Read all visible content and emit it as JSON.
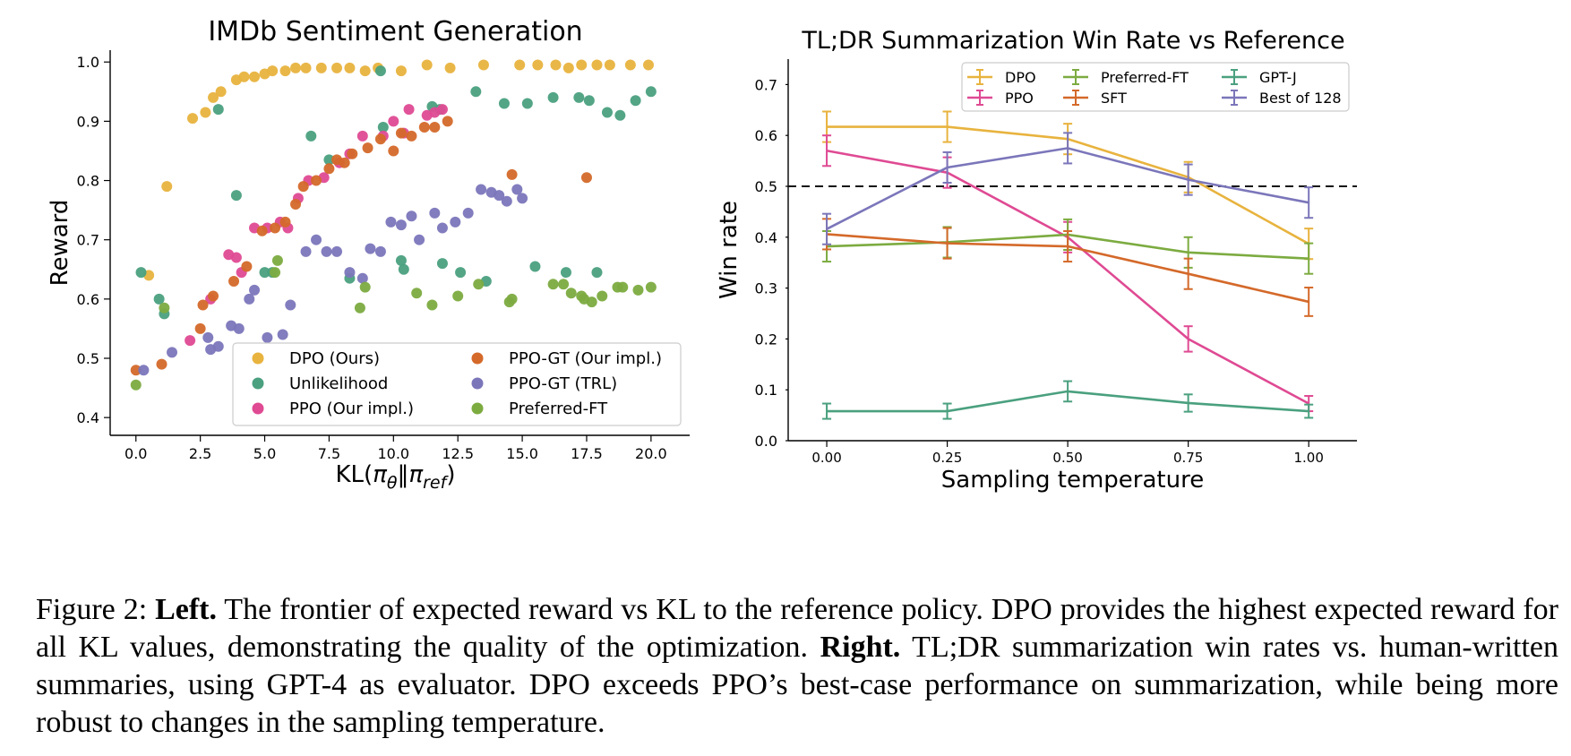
{
  "chart_data": [
    {
      "type": "scatter",
      "title": "IMDb Sentiment Generation",
      "xlabel": "KL(πθ‖πref)",
      "ylabel": "Reward",
      "xlim": [
        -1,
        21.5
      ],
      "ylim": [
        0.37,
        1.02
      ],
      "xticks": [
        0.0,
        2.5,
        5.0,
        7.5,
        10.0,
        12.5,
        15.0,
        17.5,
        20.0
      ],
      "xtick_labels": [
        "0.0",
        "2.5",
        "5.0",
        "7.5",
        "10.0",
        "12.5",
        "15.0",
        "17.5",
        "20.0"
      ],
      "yticks": [
        0.4,
        0.5,
        0.6,
        0.7,
        0.8,
        0.9,
        1.0
      ],
      "ytick_labels": [
        "0.4",
        "0.5",
        "0.6",
        "0.7",
        "0.8",
        "0.9",
        "1.0"
      ],
      "legend_placement": "lower-right",
      "series": [
        {
          "name": "DPO (Ours)",
          "color": "#e8b33e",
          "points": [
            [
              0.5,
              0.64
            ],
            [
              1.2,
              0.79
            ],
            [
              2.2,
              0.905
            ],
            [
              2.7,
              0.915
            ],
            [
              3.0,
              0.94
            ],
            [
              3.3,
              0.95
            ],
            [
              3.9,
              0.97
            ],
            [
              4.2,
              0.975
            ],
            [
              4.6,
              0.975
            ],
            [
              5.0,
              0.98
            ],
            [
              5.3,
              0.985
            ],
            [
              5.8,
              0.985
            ],
            [
              6.2,
              0.99
            ],
            [
              6.6,
              0.99
            ],
            [
              7.2,
              0.99
            ],
            [
              7.8,
              0.99
            ],
            [
              8.3,
              0.99
            ],
            [
              8.9,
              0.985
            ],
            [
              9.4,
              0.99
            ],
            [
              10.3,
              0.985
            ],
            [
              11.3,
              0.995
            ],
            [
              12.2,
              0.99
            ],
            [
              13.5,
              0.995
            ],
            [
              14.9,
              0.995
            ],
            [
              15.6,
              0.995
            ],
            [
              16.3,
              0.995
            ],
            [
              16.8,
              0.99
            ],
            [
              17.3,
              0.995
            ],
            [
              17.9,
              0.995
            ],
            [
              18.4,
              0.995
            ],
            [
              19.2,
              0.995
            ],
            [
              19.9,
              0.995
            ]
          ]
        },
        {
          "name": "Unlikelihood",
          "color": "#4aa07f",
          "points": [
            [
              0.2,
              0.645
            ],
            [
              0.9,
              0.6
            ],
            [
              1.1,
              0.575
            ],
            [
              3.2,
              0.92
            ],
            [
              3.9,
              0.775
            ],
            [
              5.0,
              0.645
            ],
            [
              5.3,
              0.645
            ],
            [
              6.8,
              0.875
            ],
            [
              7.5,
              0.835
            ],
            [
              8.3,
              0.635
            ],
            [
              9.5,
              0.985
            ],
            [
              9.6,
              0.89
            ],
            [
              10.4,
              0.65
            ],
            [
              10.3,
              0.665
            ],
            [
              11.5,
              0.925
            ],
            [
              11.8,
              0.92
            ],
            [
              11.9,
              0.66
            ],
            [
              12.6,
              0.645
            ],
            [
              13.2,
              0.95
            ],
            [
              13.6,
              0.63
            ],
            [
              14.3,
              0.93
            ],
            [
              15.2,
              0.93
            ],
            [
              15.5,
              0.655
            ],
            [
              16.2,
              0.94
            ],
            [
              16.7,
              0.645
            ],
            [
              17.2,
              0.94
            ],
            [
              17.6,
              0.935
            ],
            [
              17.9,
              0.645
            ],
            [
              18.3,
              0.915
            ],
            [
              18.8,
              0.91
            ],
            [
              19.4,
              0.935
            ],
            [
              20.0,
              0.95
            ]
          ]
        },
        {
          "name": "PPO (Our impl.)",
          "color": "#df4a93",
          "points": [
            [
              2.1,
              0.53
            ],
            [
              2.9,
              0.6
            ],
            [
              3.6,
              0.675
            ],
            [
              3.9,
              0.67
            ],
            [
              4.1,
              0.645
            ],
            [
              4.6,
              0.72
            ],
            [
              5.1,
              0.72
            ],
            [
              5.6,
              0.73
            ],
            [
              5.9,
              0.72
            ],
            [
              6.3,
              0.77
            ],
            [
              6.7,
              0.8
            ],
            [
              7.3,
              0.805
            ],
            [
              7.9,
              0.83
            ],
            [
              8.3,
              0.845
            ],
            [
              8.8,
              0.875
            ],
            [
              9.6,
              0.875
            ],
            [
              10.0,
              0.9
            ],
            [
              10.4,
              0.88
            ],
            [
              10.6,
              0.92
            ],
            [
              11.3,
              0.91
            ],
            [
              11.6,
              0.915
            ],
            [
              11.9,
              0.92
            ]
          ]
        },
        {
          "name": "PPO-GT (Our impl.)",
          "color": "#d4692a",
          "points": [
            [
              0.0,
              0.48
            ],
            [
              1.0,
              0.49
            ],
            [
              2.5,
              0.55
            ],
            [
              2.6,
              0.59
            ],
            [
              3.0,
              0.605
            ],
            [
              3.8,
              0.63
            ],
            [
              4.3,
              0.655
            ],
            [
              4.9,
              0.715
            ],
            [
              5.4,
              0.72
            ],
            [
              5.8,
              0.73
            ],
            [
              6.2,
              0.76
            ],
            [
              6.5,
              0.79
            ],
            [
              7.0,
              0.8
            ],
            [
              7.5,
              0.82
            ],
            [
              7.8,
              0.835
            ],
            [
              8.1,
              0.83
            ],
            [
              8.4,
              0.845
            ],
            [
              9.0,
              0.855
            ],
            [
              9.5,
              0.87
            ],
            [
              10.0,
              0.85
            ],
            [
              10.3,
              0.88
            ],
            [
              10.7,
              0.875
            ],
            [
              11.2,
              0.89
            ],
            [
              11.6,
              0.89
            ],
            [
              12.1,
              0.9
            ],
            [
              14.6,
              0.81
            ],
            [
              17.5,
              0.805
            ]
          ]
        },
        {
          "name": "PPO-GT (TRL)",
          "color": "#7b76ba",
          "points": [
            [
              0.3,
              0.48
            ],
            [
              1.4,
              0.51
            ],
            [
              2.8,
              0.535
            ],
            [
              2.9,
              0.515
            ],
            [
              3.2,
              0.52
            ],
            [
              3.7,
              0.555
            ],
            [
              4.0,
              0.55
            ],
            [
              4.4,
              0.6
            ],
            [
              4.6,
              0.615
            ],
            [
              5.1,
              0.535
            ],
            [
              5.7,
              0.54
            ],
            [
              6.0,
              0.59
            ],
            [
              6.6,
              0.68
            ],
            [
              7.0,
              0.7
            ],
            [
              7.4,
              0.68
            ],
            [
              7.8,
              0.68
            ],
            [
              8.3,
              0.645
            ],
            [
              8.8,
              0.635
            ],
            [
              9.1,
              0.685
            ],
            [
              9.5,
              0.68
            ],
            [
              9.9,
              0.73
            ],
            [
              10.3,
              0.725
            ],
            [
              10.7,
              0.74
            ],
            [
              11.0,
              0.7
            ],
            [
              11.6,
              0.745
            ],
            [
              11.9,
              0.72
            ],
            [
              12.4,
              0.73
            ],
            [
              12.9,
              0.745
            ],
            [
              13.4,
              0.785
            ],
            [
              13.8,
              0.78
            ],
            [
              14.1,
              0.775
            ],
            [
              14.4,
              0.765
            ],
            [
              14.8,
              0.785
            ],
            [
              15.0,
              0.77
            ]
          ]
        },
        {
          "name": "Preferred-FT",
          "color": "#7cab40",
          "points": [
            [
              0.0,
              0.455
            ],
            [
              1.1,
              0.585
            ],
            [
              5.4,
              0.645
            ],
            [
              5.5,
              0.665
            ],
            [
              8.7,
              0.585
            ],
            [
              8.9,
              0.62
            ],
            [
              10.9,
              0.61
            ],
            [
              11.5,
              0.59
            ],
            [
              12.5,
              0.605
            ],
            [
              13.3,
              0.625
            ],
            [
              14.5,
              0.595
            ],
            [
              14.6,
              0.6
            ],
            [
              16.2,
              0.625
            ],
            [
              16.6,
              0.625
            ],
            [
              16.9,
              0.61
            ],
            [
              17.3,
              0.605
            ],
            [
              17.4,
              0.6
            ],
            [
              17.7,
              0.595
            ],
            [
              18.1,
              0.605
            ],
            [
              18.7,
              0.62
            ],
            [
              18.9,
              0.62
            ],
            [
              19.5,
              0.615
            ],
            [
              20.0,
              0.62
            ]
          ]
        }
      ]
    },
    {
      "type": "line",
      "title": "TL;DR Summarization Win Rate vs Reference",
      "xlabel": "Sampling temperature",
      "ylabel": "Win rate",
      "xlim": [
        -0.08,
        1.1
      ],
      "ylim": [
        0.0,
        0.75
      ],
      "x": [
        0.0,
        0.25,
        0.5,
        0.75,
        1.0
      ],
      "xtick_labels": [
        "0.00",
        "0.25",
        "0.50",
        "0.75",
        "1.00"
      ],
      "yticks": [
        0.0,
        0.1,
        0.2,
        0.3,
        0.4,
        0.5,
        0.6,
        0.7
      ],
      "ytick_labels": [
        "0.0",
        "0.1",
        "0.2",
        "0.3",
        "0.4",
        "0.5",
        "0.6",
        "0.7"
      ],
      "reference_line": 0.5,
      "legend_placement": "top-right",
      "series": [
        {
          "name": "DPO",
          "color": "#e8b33e",
          "values": [
            0.617,
            0.617,
            0.593,
            0.518,
            0.387
          ],
          "errors": [
            0.03,
            0.03,
            0.03,
            0.03,
            0.03
          ]
        },
        {
          "name": "PPO",
          "color": "#df4a93",
          "values": [
            0.57,
            0.527,
            0.4,
            0.2,
            0.073
          ],
          "errors": [
            0.03,
            0.03,
            0.03,
            0.025,
            0.015
          ]
        },
        {
          "name": "Preferred-FT",
          "color": "#7cab40",
          "values": [
            0.382,
            0.39,
            0.405,
            0.37,
            0.358
          ],
          "errors": [
            0.03,
            0.03,
            0.03,
            0.03,
            0.03
          ]
        },
        {
          "name": "SFT",
          "color": "#d4692a",
          "values": [
            0.406,
            0.388,
            0.382,
            0.328,
            0.273
          ],
          "errors": [
            0.03,
            0.03,
            0.03,
            0.03,
            0.028
          ]
        },
        {
          "name": "GPT-J",
          "color": "#4aa07f",
          "values": [
            0.058,
            0.058,
            0.097,
            0.074,
            0.058
          ],
          "errors": [
            0.015,
            0.015,
            0.02,
            0.017,
            0.013
          ]
        },
        {
          "name": "Best of 128",
          "color": "#7b76ba",
          "values": [
            0.416,
            0.537,
            0.575,
            0.513,
            0.468
          ],
          "errors": [
            0.03,
            0.03,
            0.03,
            0.03,
            0.03
          ]
        }
      ]
    }
  ],
  "caption": {
    "prefix": "Figure 2: ",
    "left_label": "Left.",
    "left_text": " The frontier of expected reward vs KL to the reference policy. DPO provides the highest expected reward for all KL values, demonstrating the quality of the optimization. ",
    "right_label": "Right.",
    "right_text": " TL;DR summarization win rates vs. human-written summaries, using GPT-4 as evaluator. DPO exceeds PPO’s best-case performance on summarization, while being more robust to changes in the sampling temperature."
  }
}
